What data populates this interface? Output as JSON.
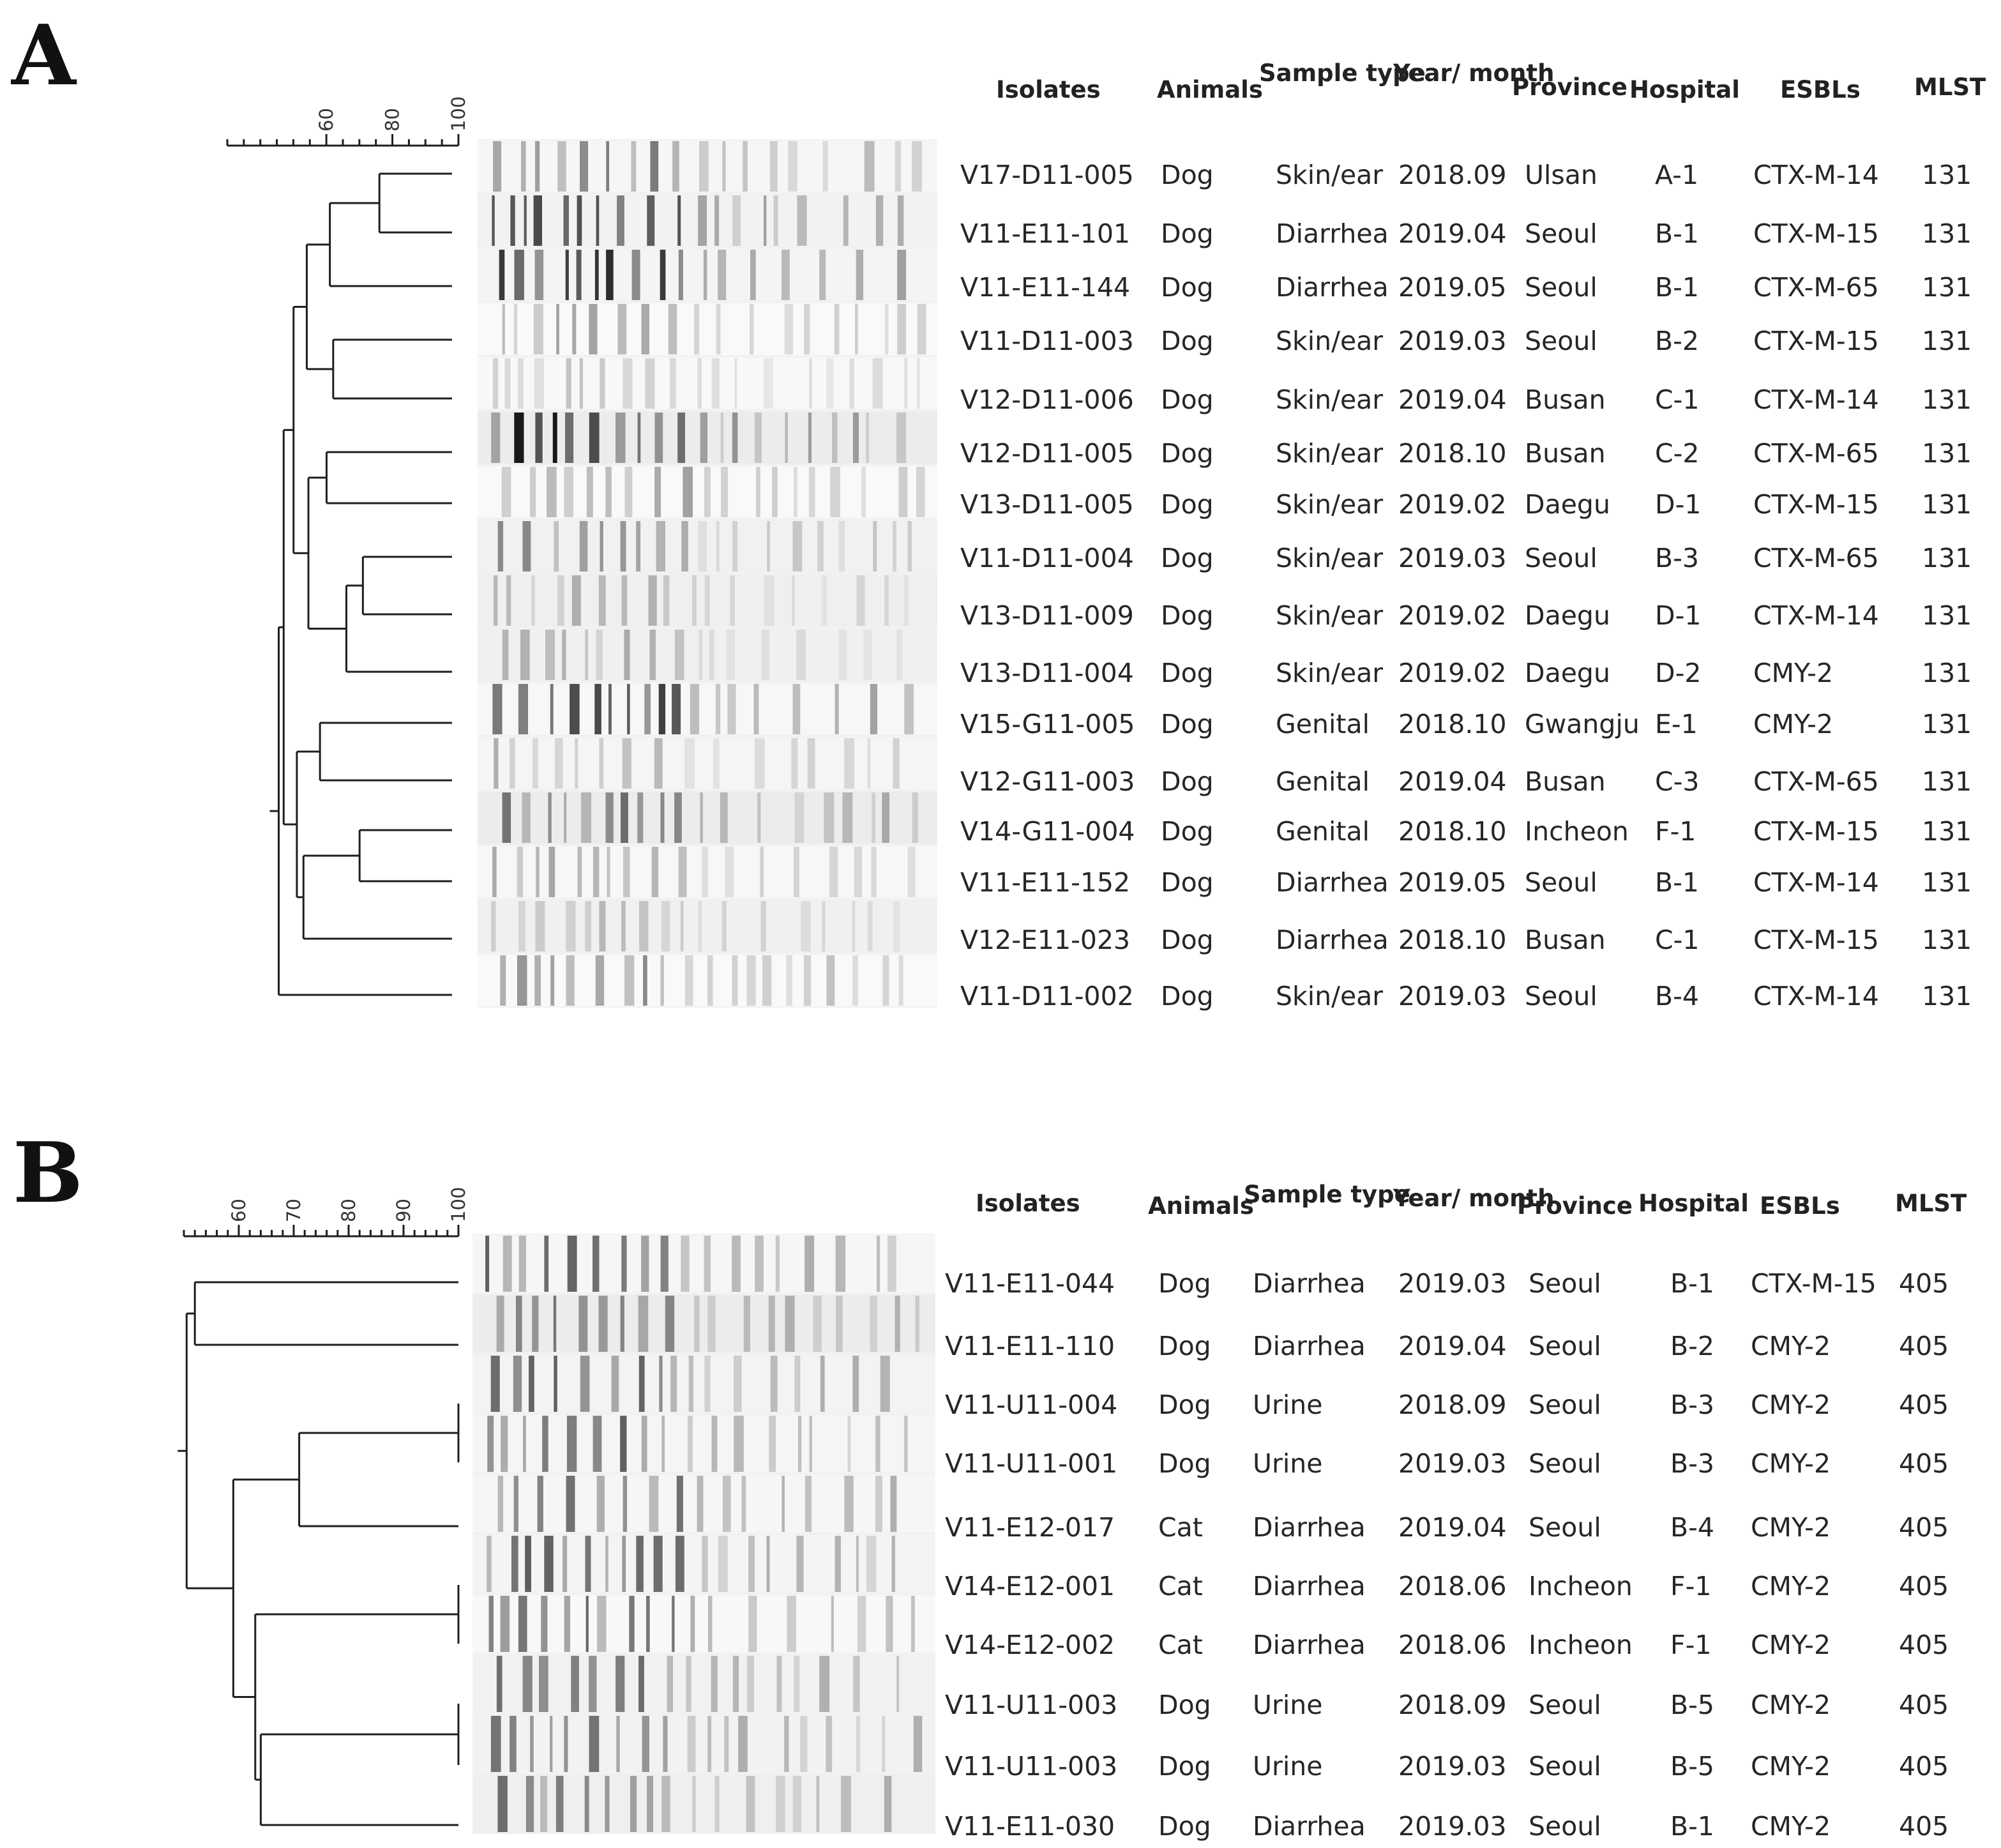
{
  "panels": [
    {
      "letter": "A",
      "headers": {
        "isolates": "Isolates",
        "animals": "Animals",
        "sample_type": "Sample type",
        "year_month": "Year/ month",
        "province": "Province",
        "hospital": "Hospital",
        "esbls": "ESBLs",
        "mlst": "MLST"
      },
      "scale_ticks": [
        "60",
        "80",
        "100"
      ],
      "rows": [
        {
          "isolate": "V17-D11-005",
          "animal": "Dog",
          "sample": "Skin/ear",
          "date": "2018.09",
          "province": "Ulsan",
          "hospital": "A-1",
          "esbl": "CTX-M-14",
          "mlst": "131"
        },
        {
          "isolate": "V11-E11-101",
          "animal": "Dog",
          "sample": "Diarrhea",
          "date": "2019.04",
          "province": "Seoul",
          "hospital": "B-1",
          "esbl": "CTX-M-15",
          "mlst": "131"
        },
        {
          "isolate": "V11-E11-144",
          "animal": "Dog",
          "sample": "Diarrhea",
          "date": "2019.05",
          "province": "Seoul",
          "hospital": "B-1",
          "esbl": "CTX-M-65",
          "mlst": "131"
        },
        {
          "isolate": "V11-D11-003",
          "animal": "Dog",
          "sample": "Skin/ear",
          "date": "2019.03",
          "province": "Seoul",
          "hospital": "B-2",
          "esbl": "CTX-M-15",
          "mlst": "131"
        },
        {
          "isolate": "V12-D11-006",
          "animal": "Dog",
          "sample": "Skin/ear",
          "date": "2019.04",
          "province": "Busan",
          "hospital": "C-1",
          "esbl": "CTX-M-14",
          "mlst": "131"
        },
        {
          "isolate": "V12-D11-005",
          "animal": "Dog",
          "sample": "Skin/ear",
          "date": "2018.10",
          "province": "Busan",
          "hospital": "C-2",
          "esbl": "CTX-M-65",
          "mlst": "131"
        },
        {
          "isolate": "V13-D11-005",
          "animal": "Dog",
          "sample": "Skin/ear",
          "date": "2019.02",
          "province": "Daegu",
          "hospital": "D-1",
          "esbl": "CTX-M-15",
          "mlst": "131"
        },
        {
          "isolate": "V11-D11-004",
          "animal": "Dog",
          "sample": "Skin/ear",
          "date": "2019.03",
          "province": "Seoul",
          "hospital": "B-3",
          "esbl": "CTX-M-65",
          "mlst": "131"
        },
        {
          "isolate": "V13-D11-009",
          "animal": "Dog",
          "sample": "Skin/ear",
          "date": "2019.02",
          "province": "Daegu",
          "hospital": "D-1",
          "esbl": "CTX-M-14",
          "mlst": "131"
        },
        {
          "isolate": "V13-D11-004",
          "animal": "Dog",
          "sample": "Skin/ear",
          "date": "2019.02",
          "province": "Daegu",
          "hospital": "D-2",
          "esbl": "CMY-2",
          "mlst": "131"
        },
        {
          "isolate": "V15-G11-005",
          "animal": "Dog",
          "sample": "Genital",
          "date": "2018.10",
          "province": "Gwangju",
          "hospital": "E-1",
          "esbl": "CMY-2",
          "mlst": "131"
        },
        {
          "isolate": "V12-G11-003",
          "animal": "Dog",
          "sample": "Genital",
          "date": "2019.04",
          "province": "Busan",
          "hospital": "C-3",
          "esbl": "CTX-M-65",
          "mlst": "131"
        },
        {
          "isolate": "V14-G11-004",
          "animal": "Dog",
          "sample": "Genital",
          "date": "2018.10",
          "province": "Incheon",
          "hospital": "F-1",
          "esbl": "CTX-M-15",
          "mlst": "131"
        },
        {
          "isolate": "V11-E11-152",
          "animal": "Dog",
          "sample": "Diarrhea",
          "date": "2019.05",
          "province": "Seoul",
          "hospital": "B-1",
          "esbl": "CTX-M-14",
          "mlst": "131"
        },
        {
          "isolate": "V12-E11-023",
          "animal": "Dog",
          "sample": "Diarrhea",
          "date": "2018.10",
          "province": "Busan",
          "hospital": "C-1",
          "esbl": "CTX-M-15",
          "mlst": "131"
        },
        {
          "isolate": "V11-D11-002",
          "animal": "Dog",
          "sample": "Skin/ear",
          "date": "2019.03",
          "province": "Seoul",
          "hospital": "B-4",
          "esbl": "CTX-M-14",
          "mlst": "131"
        }
      ]
    },
    {
      "letter": "B",
      "headers": {
        "isolates": "Isolates",
        "animals": "Animals",
        "sample_type": "Sample type",
        "year_month": "Year/ month",
        "province": "Province",
        "hospital": "Hospital",
        "esbls": "ESBLs",
        "mlst": "MLST"
      },
      "scale_ticks": [
        "60",
        "70",
        "80",
        "90",
        "100"
      ],
      "rows": [
        {
          "isolate": "V11-E11-044",
          "animal": "Dog",
          "sample": "Diarrhea",
          "date": "2019.03",
          "province": "Seoul",
          "hospital": "B-1",
          "esbl": "CTX-M-15",
          "mlst": "405"
        },
        {
          "isolate": "V11-E11-110",
          "animal": "Dog",
          "sample": "Diarrhea",
          "date": "2019.04",
          "province": "Seoul",
          "hospital": "B-2",
          "esbl": "CMY-2",
          "mlst": "405"
        },
        {
          "isolate": "V11-U11-004",
          "animal": "Dog",
          "sample": "Urine",
          "date": "2018.09",
          "province": "Seoul",
          "hospital": "B-3",
          "esbl": "CMY-2",
          "mlst": "405"
        },
        {
          "isolate": "V11-U11-001",
          "animal": "Dog",
          "sample": "Urine",
          "date": "2019.03",
          "province": "Seoul",
          "hospital": "B-3",
          "esbl": "CMY-2",
          "mlst": "405"
        },
        {
          "isolate": "V11-E12-017",
          "animal": "Cat",
          "sample": "Diarrhea",
          "date": "2019.04",
          "province": "Seoul",
          "hospital": "B-4",
          "esbl": "CMY-2",
          "mlst": "405"
        },
        {
          "isolate": "V14-E12-001",
          "animal": "Cat",
          "sample": "Diarrhea",
          "date": "2018.06",
          "province": "Incheon",
          "hospital": "F-1",
          "esbl": "CMY-2",
          "mlst": "405"
        },
        {
          "isolate": "V14-E12-002",
          "animal": "Cat",
          "sample": "Diarrhea",
          "date": "2018.06",
          "province": "Incheon",
          "hospital": "F-1",
          "esbl": "CMY-2",
          "mlst": "405"
        },
        {
          "isolate": "V11-U11-003",
          "animal": "Dog",
          "sample": "Urine",
          "date": "2018.09",
          "province": "Seoul",
          "hospital": "B-5",
          "esbl": "CMY-2",
          "mlst": "405"
        },
        {
          "isolate": "V11-U11-003",
          "animal": "Dog",
          "sample": "Urine",
          "date": "2019.03",
          "province": "Seoul",
          "hospital": "B-5",
          "esbl": "CMY-2",
          "mlst": "405"
        },
        {
          "isolate": "V11-E11-030",
          "animal": "Dog",
          "sample": "Diarrhea",
          "date": "2019.03",
          "province": "Seoul",
          "hospital": "B-1",
          "esbl": "CMY-2",
          "mlst": "405"
        }
      ]
    }
  ]
}
